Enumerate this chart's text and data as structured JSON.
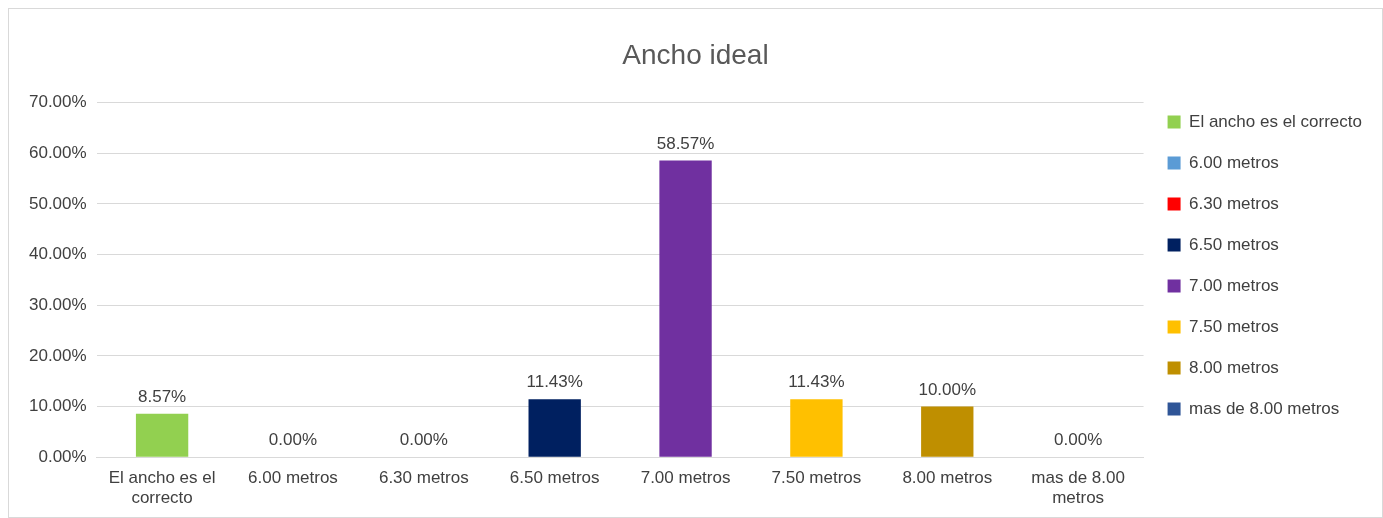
{
  "chart_data": {
    "type": "bar",
    "title": "Ancho ideal",
    "categories": [
      "El ancho es el correcto",
      "6.00 metros",
      "6.30 metros",
      "6.50 metros",
      "7.00 metros",
      "7.50 metros",
      "8.00 metros",
      "mas de 8.00 metros"
    ],
    "series": [
      {
        "name": "El ancho es el correcto",
        "color": "#92d050",
        "values": [
          8.57,
          null,
          null,
          null,
          null,
          null,
          null,
          null
        ],
        "value_labels": [
          "8.57%",
          null,
          null,
          null,
          null,
          null,
          null,
          null
        ]
      },
      {
        "name": "6.00 metros",
        "color": "#5b9bd5",
        "values": [
          null,
          0,
          null,
          null,
          null,
          null,
          null,
          null
        ],
        "value_labels": [
          null,
          "0.00%",
          null,
          null,
          null,
          null,
          null,
          null
        ]
      },
      {
        "name": "6.30 metros",
        "color": "#ff0000",
        "values": [
          null,
          null,
          0,
          null,
          null,
          null,
          null,
          null
        ],
        "value_labels": [
          null,
          null,
          "0.00%",
          null,
          null,
          null,
          null,
          null
        ]
      },
      {
        "name": "6.50 metros",
        "color": "#002060",
        "values": [
          null,
          null,
          null,
          11.43,
          null,
          null,
          null,
          null
        ],
        "value_labels": [
          null,
          null,
          null,
          "11.43%",
          null,
          null,
          null,
          null
        ]
      },
      {
        "name": "7.00 metros",
        "color": "#7030a0",
        "values": [
          null,
          null,
          null,
          null,
          58.57,
          null,
          null,
          null
        ],
        "value_labels": [
          null,
          null,
          null,
          null,
          "58.57%",
          null,
          null,
          null
        ]
      },
      {
        "name": "7.50 metros",
        "color": "#ffc000",
        "values": [
          null,
          null,
          null,
          null,
          null,
          11.43,
          null,
          null
        ],
        "value_labels": [
          null,
          null,
          null,
          null,
          null,
          "11.43%",
          null,
          null
        ]
      },
      {
        "name": "8.00 metros",
        "color": "#bf8f00",
        "values": [
          null,
          null,
          null,
          null,
          null,
          null,
          10,
          null
        ],
        "value_labels": [
          null,
          null,
          null,
          null,
          null,
          null,
          "10.00%",
          null
        ]
      },
      {
        "name": "mas de 8.00 metros",
        "color": "#2f5597",
        "values": [
          null,
          null,
          null,
          null,
          null,
          null,
          null,
          0
        ],
        "value_labels": [
          null,
          null,
          null,
          null,
          null,
          null,
          null,
          "0.00%"
        ]
      }
    ],
    "ylim": [
      0,
      70
    ],
    "yticks": [
      {
        "value": 0,
        "label": "0.00%"
      },
      {
        "value": 10,
        "label": "10.00%"
      },
      {
        "value": 20,
        "label": "20.00%"
      },
      {
        "value": 30,
        "label": "30.00%"
      },
      {
        "value": 40,
        "label": "40.00%"
      },
      {
        "value": 50,
        "label": "50.00%"
      },
      {
        "value": 60,
        "label": "60.00%"
      },
      {
        "value": 70,
        "label": "70.00%"
      }
    ],
    "grid": "y",
    "legend": "right"
  }
}
